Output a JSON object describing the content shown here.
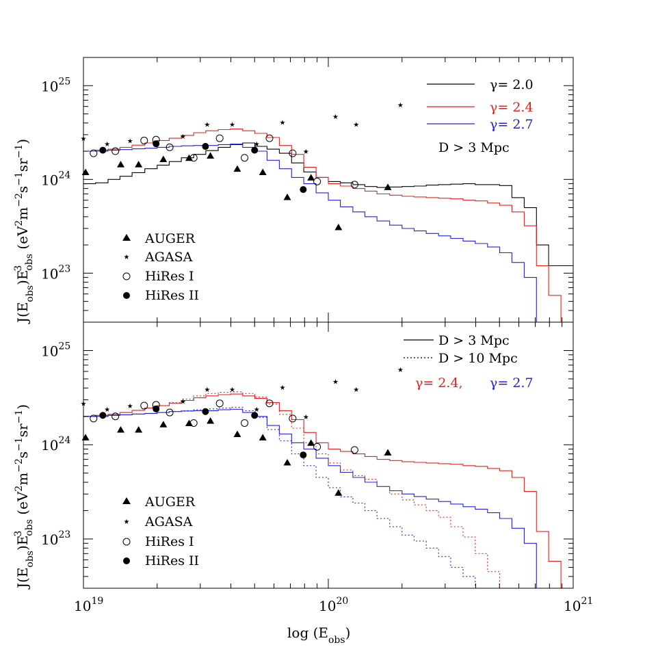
{
  "chart_data": {
    "type": "line",
    "xlabel": "log (E_obs)",
    "ylabel": "J(E_obs)E_obs^3 (eV^2m^-2s^-1sr^-1)",
    "x_scale": "log",
    "y_scale": "log",
    "xlim": [
      1e+19,
      1e+21
    ],
    "ylim": [
      3e+22,
      2e+25
    ],
    "x_ticks": [
      {
        "value": 1e+19,
        "base": "10",
        "exp": "19"
      },
      {
        "value": 1e+20,
        "base": "10",
        "exp": "20"
      },
      {
        "value": 1e+21,
        "base": "10",
        "exp": "21"
      }
    ],
    "y_ticks": [
      {
        "value": 1e+23,
        "base": "10",
        "exp": "23"
      },
      {
        "value": 1e+24,
        "base": "10",
        "exp": "24"
      },
      {
        "value": 1e+25,
        "base": "10",
        "exp": "25"
      }
    ],
    "colors": {
      "black": "#000000",
      "red": "#e8201a",
      "blue": "#2020e0"
    },
    "panels": [
      {
        "id": "top",
        "model_legend": [
          {
            "text": "γ=  2.0",
            "color": "#000000",
            "style": "solid"
          },
          {
            "text": "γ=  2.4",
            "color": "#e8201a",
            "style": "solid"
          },
          {
            "text": "γ=  2.7",
            "color": "#2020e0",
            "style": "solid"
          }
        ],
        "note": "D  >  3  Mpc",
        "series": [
          {
            "name": "γ= 2.0",
            "color": "#000000",
            "style": "solid",
            "x": [
              1e+19,
              1.12e+19,
              1.26e+19,
              1.41e+19,
              1.58e+19,
              1.78e+19,
              2e+19,
              2.24e+19,
              2.51e+19,
              2.82e+19,
              3.16e+19,
              3.55e+19,
              3.98e+19,
              4.47e+19,
              5.01e+19,
              5.62e+19,
              6.31e+19,
              7.08e+19,
              7.94e+19,
              8.91e+19,
              1e+20,
              1.12e+20,
              1.26e+20,
              1.41e+20,
              1.58e+20,
              1.78e+20,
              2e+20,
              2.24e+20,
              2.51e+20,
              2.82e+20,
              3.16e+20,
              3.55e+20,
              3.98e+20,
              4.47e+20,
              5.01e+20,
              5.62e+20,
              6.31e+20,
              7.08e+20,
              7.94e+20,
              8.91e+20
            ],
            "y": [
              9e+23,
              9.2e+23,
              1e+24,
              1.08e+24,
              1.18e+24,
              1.3e+24,
              1.42e+24,
              1.55e+24,
              1.7e+24,
              1.85e+24,
              2.03e+24,
              2.2e+24,
              2.35e+24,
              2.45e+24,
              2.25e+24,
              2.1e+24,
              1.9e+24,
              1.5e+24,
              1.2e+24,
              1.05e+24,
              9.5e+23,
              9.2e+23,
              8.8e+23,
              8.4e+23,
              8.2e+23,
              8.3e+23,
              8.4e+23,
              8.5e+23,
              8.7e+23,
              8.8e+23,
              8.9e+23,
              9e+23,
              8.8e+23,
              8.8e+23,
              8.6e+23,
              6.4e+23,
              5e+23,
              2e+23,
              1.2e+23,
              1.2e+23
            ]
          },
          {
            "name": "γ= 2.4",
            "color": "#e8201a",
            "style": "solid",
            "x": [
              1e+19,
              1.12e+19,
              1.26e+19,
              1.41e+19,
              1.58e+19,
              1.78e+19,
              2e+19,
              2.24e+19,
              2.51e+19,
              2.82e+19,
              3.16e+19,
              3.55e+19,
              3.98e+19,
              4.47e+19,
              5.01e+19,
              5.62e+19,
              6.31e+19,
              7.08e+19,
              7.94e+19,
              8.91e+19,
              1e+20,
              1.12e+20,
              1.26e+20,
              1.41e+20,
              1.58e+20,
              1.78e+20,
              2e+20,
              2.24e+20,
              2.51e+20,
              2.82e+20,
              3.16e+20,
              3.55e+20,
              3.98e+20,
              4.47e+20,
              5.01e+20,
              5.62e+20,
              6.31e+20,
              7.08e+20,
              7.94e+20,
              8.91e+20
            ],
            "y": [
              2e+24,
              2.05e+24,
              2.1e+24,
              2.2e+24,
              2.32e+24,
              2.45e+24,
              2.6e+24,
              2.75e+24,
              2.95e+24,
              3.15e+24,
              3.3e+24,
              3.4e+24,
              3.45e+24,
              3.3e+24,
              3.1e+24,
              2.8e+24,
              2.3e+24,
              1.85e+24,
              1.35e+24,
              1.05e+24,
              9e+23,
              8.5e+23,
              8e+23,
              7.5e+23,
              7e+23,
              6.8e+23,
              6.6e+23,
              6.5e+23,
              6.4e+23,
              6.3e+23,
              6.2e+23,
              6e+23,
              5.9e+23,
              5.6e+23,
              5.3e+23,
              4.5e+23,
              3.2e+23,
              1.2e+23,
              5.8e+22,
              3e+22
            ]
          },
          {
            "name": "γ= 2.7",
            "color": "#2020e0",
            "style": "solid",
            "x": [
              1e+19,
              1.12e+19,
              1.26e+19,
              1.41e+19,
              1.58e+19,
              1.78e+19,
              2e+19,
              2.24e+19,
              2.51e+19,
              2.82e+19,
              3.16e+19,
              3.55e+19,
              3.98e+19,
              4.47e+19,
              5.01e+19,
              5.62e+19,
              6.31e+19,
              7.08e+19,
              7.94e+19,
              8.91e+19,
              1e+20,
              1.12e+20,
              1.26e+20,
              1.41e+20,
              1.58e+20,
              1.78e+20,
              2e+20,
              2.24e+20,
              2.51e+20,
              2.82e+20,
              3.16e+20,
              3.55e+20,
              3.98e+20,
              4.47e+20,
              5.01e+20,
              5.62e+20,
              6.31e+20,
              7.08e+20
            ],
            "y": [
              2e+24,
              2e+24,
              2.05e+24,
              2.08e+24,
              2.12e+24,
              2.15e+24,
              2.2e+24,
              2.25e+24,
              2.28e+24,
              2.3e+24,
              2.3e+24,
              2.35e+24,
              2.38e+24,
              2.2e+24,
              2e+24,
              1.6e+24,
              1.3e+24,
              1.05e+24,
              9e+23,
              7.2e+23,
              6e+23,
              5.1e+23,
              4.5e+23,
              4e+23,
              3.6e+23,
              3.25e+23,
              3e+23,
              2.82e+23,
              2.65e+23,
              2.5e+23,
              2.35e+23,
              2.2e+23,
              2.07e+23,
              1.9e+23,
              1.65e+23,
              1.3e+23,
              9e+22,
              3e+22
            ]
          }
        ]
      },
      {
        "id": "bottom",
        "model_legend": [
          {
            "text": "D  >  3  Mpc",
            "color": "#000000",
            "style": "solid"
          },
          {
            "text": "D  >  10  Mpc",
            "color": "#000000",
            "style": "dotted"
          }
        ],
        "gamma_labels": [
          {
            "text": "γ=  2.4,",
            "color": "#e8201a"
          },
          {
            "text": "γ=  2.7",
            "color": "#2020e0"
          }
        ],
        "series": [
          {
            "name": "γ= 2.4, D > 3 Mpc",
            "color": "#e8201a",
            "style": "solid",
            "x": [
              1e+19,
              1.12e+19,
              1.26e+19,
              1.41e+19,
              1.58e+19,
              1.78e+19,
              2e+19,
              2.24e+19,
              2.51e+19,
              2.82e+19,
              3.16e+19,
              3.55e+19,
              3.98e+19,
              4.47e+19,
              5.01e+19,
              5.62e+19,
              6.31e+19,
              7.08e+19,
              7.94e+19,
              8.91e+19,
              1e+20,
              1.12e+20,
              1.26e+20,
              1.41e+20,
              1.58e+20,
              1.78e+20,
              2e+20,
              2.24e+20,
              2.51e+20,
              2.82e+20,
              3.16e+20,
              3.55e+20,
              3.98e+20,
              4.47e+20,
              5.01e+20,
              5.62e+20,
              6.31e+20,
              7.08e+20,
              7.94e+20,
              8.91e+20
            ],
            "y": [
              2e+24,
              2.05e+24,
              2.1e+24,
              2.2e+24,
              2.32e+24,
              2.45e+24,
              2.6e+24,
              2.75e+24,
              2.95e+24,
              3.15e+24,
              3.3e+24,
              3.4e+24,
              3.45e+24,
              3.3e+24,
              3.1e+24,
              2.8e+24,
              2.3e+24,
              1.85e+24,
              1.35e+24,
              1.05e+24,
              9e+23,
              8.5e+23,
              8e+23,
              7.5e+23,
              7e+23,
              6.8e+23,
              6.6e+23,
              6.5e+23,
              6.4e+23,
              6.3e+23,
              6.2e+23,
              6e+23,
              5.9e+23,
              5.6e+23,
              5.3e+23,
              4.5e+23,
              3.2e+23,
              1.2e+23,
              5.8e+22,
              3e+22
            ]
          },
          {
            "name": "γ= 2.7, D > 3 Mpc",
            "color": "#2020e0",
            "style": "solid",
            "x": [
              1e+19,
              1.12e+19,
              1.26e+19,
              1.41e+19,
              1.58e+19,
              1.78e+19,
              2e+19,
              2.24e+19,
              2.51e+19,
              2.82e+19,
              3.16e+19,
              3.55e+19,
              3.98e+19,
              4.47e+19,
              5.01e+19,
              5.62e+19,
              6.31e+19,
              7.08e+19,
              7.94e+19,
              8.91e+19,
              1e+20,
              1.12e+20,
              1.26e+20,
              1.41e+20,
              1.58e+20,
              1.78e+20,
              2e+20,
              2.24e+20,
              2.51e+20,
              2.82e+20,
              3.16e+20,
              3.55e+20,
              3.98e+20,
              4.47e+20,
              5.01e+20,
              5.62e+20,
              6.31e+20,
              7.08e+20
            ],
            "y": [
              2e+24,
              2e+24,
              2.05e+24,
              2.08e+24,
              2.12e+24,
              2.15e+24,
              2.2e+24,
              2.25e+24,
              2.28e+24,
              2.3e+24,
              2.3e+24,
              2.35e+24,
              2.38e+24,
              2.2e+24,
              2e+24,
              1.6e+24,
              1.3e+24,
              1.05e+24,
              9e+23,
              7.2e+23,
              6e+23,
              5.1e+23,
              4.5e+23,
              4e+23,
              3.6e+23,
              3.25e+23,
              3e+23,
              2.82e+23,
              2.65e+23,
              2.5e+23,
              2.35e+23,
              2.2e+23,
              2.07e+23,
              1.9e+23,
              1.65e+23,
              1.3e+23,
              9e+22,
              3e+22
            ]
          },
          {
            "name": "γ= 2.4, D > 10 Mpc",
            "color": "#e8201a",
            "style": "dotted",
            "x": [
              1e+19,
              1.12e+19,
              1.26e+19,
              1.41e+19,
              1.58e+19,
              1.78e+19,
              2e+19,
              2.24e+19,
              2.51e+19,
              2.82e+19,
              3.16e+19,
              3.55e+19,
              3.98e+19,
              4.47e+19,
              5.01e+19,
              5.62e+19,
              6.31e+19,
              7.08e+19,
              7.94e+19,
              8.91e+19,
              1e+20,
              1.12e+20,
              1.26e+20,
              1.41e+20,
              1.58e+20,
              1.78e+20,
              2e+20,
              2.24e+20,
              2.51e+20,
              2.82e+20,
              3.16e+20,
              3.55e+20,
              3.98e+20,
              4.47e+20,
              5.01e+20,
              5.62e+20
            ],
            "y": [
              2e+24,
              2.05e+24,
              2.1e+24,
              2.2e+24,
              2.32e+24,
              2.45e+24,
              2.6e+24,
              2.8e+24,
              3.05e+24,
              3.3e+24,
              3.5e+24,
              3.6e+24,
              3.65e+24,
              3.5e+24,
              3.2e+24,
              2.7e+24,
              2.1e+24,
              1.5e+24,
              1.05e+24,
              8e+23,
              6.4e+23,
              5.4e+23,
              4.7e+23,
              4.3e+23,
              3.6e+23,
              3e+23,
              2.6e+23,
              2.3e+23,
              2e+23,
              1.7e+23,
              1.35e+23,
              1.05e+23,
              7e+22,
              4.5e+22,
              3e+22,
              3e+22
            ]
          },
          {
            "name": "γ= 2.7, D > 10 Mpc",
            "color": "#2020e0",
            "style": "dotted",
            "x": [
              1e+19,
              1.12e+19,
              1.26e+19,
              1.41e+19,
              1.58e+19,
              1.78e+19,
              2e+19,
              2.24e+19,
              2.51e+19,
              2.82e+19,
              3.16e+19,
              3.55e+19,
              3.98e+19,
              4.47e+19,
              5.01e+19,
              5.62e+19,
              6.31e+19,
              7.08e+19,
              7.94e+19,
              8.91e+19,
              1e+20,
              1.12e+20,
              1.26e+20,
              1.41e+20,
              1.58e+20,
              1.78e+20,
              2e+20,
              2.24e+20,
              2.51e+20,
              2.82e+20,
              3.16e+20,
              3.55e+20,
              3.98e+20
            ],
            "y": [
              2e+24,
              2e+24,
              2.05e+24,
              2.08e+24,
              2.12e+24,
              2.15e+24,
              2.2e+24,
              2.25e+24,
              2.3e+24,
              2.35e+24,
              2.4e+24,
              2.45e+24,
              2.5e+24,
              2.3e+24,
              1.95e+24,
              1.45e+24,
              1.1e+24,
              8e+23,
              6e+23,
              4.5e+23,
              3.5e+23,
              2.8e+23,
              2.4e+23,
              2e+23,
              1.65e+23,
              1.35e+23,
              1.1e+23,
              9.5e+22,
              8e+22,
              6.5e+22,
              5e+22,
              4e+22,
              3e+22
            ]
          }
        ]
      }
    ],
    "data_legend": [
      {
        "label": "AUGER",
        "marker": "filled-triangle"
      },
      {
        "label": "AGASA",
        "marker": "star"
      },
      {
        "label": "HiRes I",
        "marker": "open-circle"
      },
      {
        "label": "HiRes II",
        "marker": "filled-circle"
      }
    ],
    "data_points": {
      "AUGER": {
        "marker": "filled-triangle",
        "x": [
          1.02e+19,
          1.42e+19,
          1.68e+19,
          2.12e+19,
          2.7e+19,
          3.3e+19,
          4.25e+19,
          5.4e+19,
          6.8e+19,
          8.5e+19,
          1.1e+20,
          1.75e+20
        ],
        "y": [
          1.2e+24,
          1.45e+24,
          1.45e+24,
          1.65e+24,
          1.7e+24,
          1.8e+24,
          1.3e+24,
          1.2e+24,
          6.5e+23,
          1.05e+24,
          3.1e+23,
          8.3e+23
        ]
      },
      "AGASA": {
        "marker": "star",
        "x": [
          1e+19,
          1.25e+19,
          1.55e+19,
          1.95e+19,
          2.55e+19,
          3.2e+19,
          4.05e+19,
          5.1e+19,
          6.5e+19,
          8.1e+19,
          1.07e+20,
          1.3e+20,
          1.97e+20
        ],
        "y": [
          2.75e+24,
          2.4e+24,
          2.6e+24,
          2.5e+24,
          2.9e+24,
          3.9e+24,
          3.9e+24,
          2.4e+24,
          4.1e+24,
          2e+24,
          4.7e+24,
          3.9e+24,
          6.3e+24
        ]
      },
      "HiRes I": {
        "marker": "open-circle",
        "x": [
          1.1e+19,
          1.35e+19,
          1.77e+19,
          1.98e+19,
          2.25e+19,
          2.82e+19,
          3.6e+19,
          4.55e+19,
          5.75e+19,
          7.15e+19,
          9e+19,
          1.28e+20
        ],
        "y": [
          1.9e+24,
          2e+24,
          2.6e+24,
          2.65e+24,
          2.2e+24,
          1.7e+24,
          2.75e+24,
          1.7e+24,
          2.75e+24,
          1.9e+24,
          9.5e+23,
          8.8e+23
        ]
      },
      "HiRes II": {
        "marker": "filled-circle",
        "x": [
          1.2e+19,
          1.98e+19,
          3.15e+19,
          5e+19,
          7.9e+19
        ],
        "y": [
          2.05e+24,
          2.4e+24,
          2.25e+24,
          2.05e+24,
          7.8e+23
        ]
      }
    }
  }
}
